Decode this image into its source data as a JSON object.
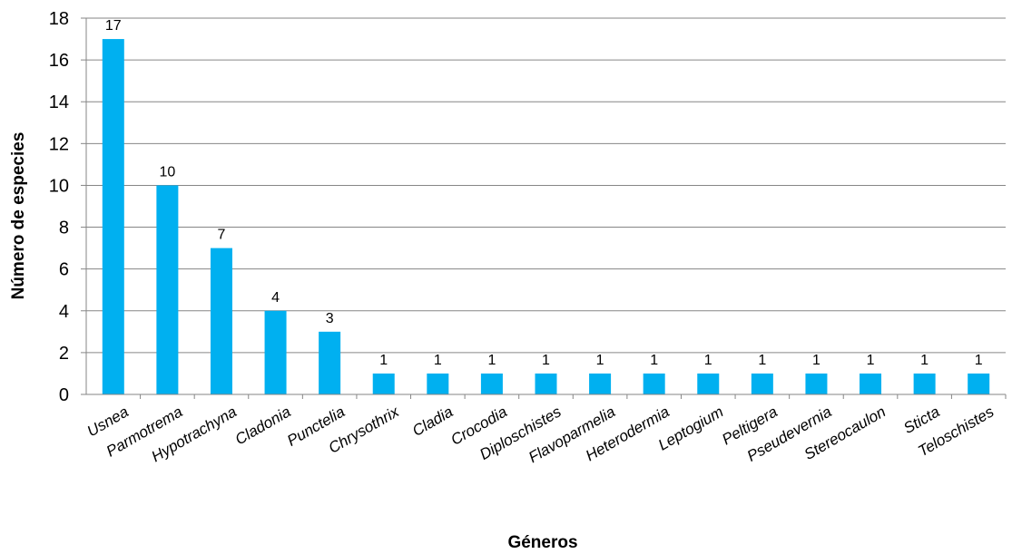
{
  "chart_data": {
    "type": "bar",
    "title": "",
    "xlabel": "Géneros",
    "ylabel": "Número de especies",
    "categories": [
      "Usnea",
      "Parmotrema",
      "Hypotrachyna",
      "Cladonia",
      "Punctelia",
      "Chrysothrix",
      "Cladia",
      "Crocodia",
      "Diploschistes",
      "Flavoparmelia",
      "Heterodermia",
      "Leptogium",
      "Peltigera",
      "Pseudevernia",
      "Stereocaulon",
      "Sticta",
      "Teloschistes"
    ],
    "values": [
      17,
      10,
      7,
      4,
      3,
      1,
      1,
      1,
      1,
      1,
      1,
      1,
      1,
      1,
      1,
      1,
      1
    ],
    "ylim": [
      0,
      18
    ],
    "yticks": [
      0,
      2,
      4,
      6,
      8,
      10,
      12,
      14,
      16,
      18
    ],
    "grid": true,
    "legend": "none",
    "data_labels": true,
    "colors": {
      "bar": "#00B0F0",
      "grid": "#868686",
      "axis": "#868686"
    }
  }
}
